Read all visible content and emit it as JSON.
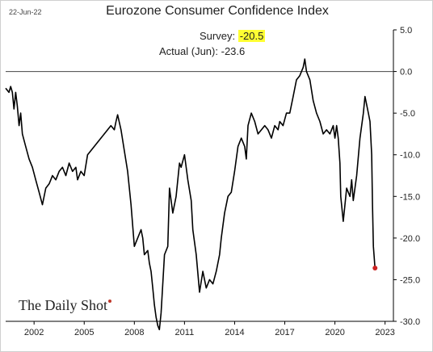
{
  "date_stamp": "22-Jun-22",
  "brand": "The Daily Shot",
  "annotations": {
    "survey_label": "Survey:",
    "survey_value": "-20.5",
    "actual_label": "Actual (Jun):",
    "actual_value": "-23.6",
    "highlight_color": "#ffff33"
  },
  "chart_data": {
    "type": "line",
    "title": "Eurozone Consumer Confidence Index",
    "xlabel": "",
    "ylabel": "",
    "xlim": [
      2000.3,
      2023.5
    ],
    "ylim": [
      -30,
      5
    ],
    "y_axis_position": "right",
    "grid": false,
    "zero_line": true,
    "x_ticks": [
      2002,
      2005,
      2008,
      2011,
      2014,
      2017,
      2020,
      2023
    ],
    "x_tick_labels": [
      "2002",
      "2005",
      "2008",
      "2011",
      "2014",
      "2017",
      "2020",
      "2023"
    ],
    "y_ticks": [
      5,
      0,
      -5,
      -10,
      -15,
      -20,
      -25,
      -30
    ],
    "y_tick_labels": [
      "5.0",
      "0.0",
      "-5.0",
      "-10.0",
      "-15.0",
      "-20.0",
      "-25.0",
      "-30.0"
    ],
    "series": [
      {
        "color": "#000000",
        "last_point_marker": "#cc2222",
        "x": [
          2000.3,
          2000.5,
          2000.6,
          2000.7,
          2000.8,
          2000.9,
          2001.0,
          2001.1,
          2001.2,
          2001.3,
          2001.5,
          2001.7,
          2001.9,
          2002.1,
          2002.3,
          2002.5,
          2002.7,
          2002.9,
          2003.0,
          2003.1,
          2003.3,
          2003.5,
          2003.7,
          2003.9,
          2004.1,
          2004.3,
          2004.5,
          2004.6,
          2004.8,
          2005.0,
          2005.2,
          2005.4,
          2005.6,
          2005.8,
          2006.0,
          2006.2,
          2006.4,
          2006.6,
          2006.8,
          2006.9,
          2007.0,
          2007.2,
          2007.4,
          2007.6,
          2007.8,
          2008.0,
          2008.2,
          2008.4,
          2008.5,
          2008.6,
          2008.8,
          2008.9,
          2009.0,
          2009.1,
          2009.2,
          2009.3,
          2009.4,
          2009.5,
          2009.6,
          2009.8,
          2010.0,
          2010.1,
          2010.3,
          2010.5,
          2010.7,
          2010.8,
          2011.0,
          2011.2,
          2011.4,
          2011.5,
          2011.7,
          2011.9,
          2012.1,
          2012.3,
          2012.5,
          2012.7,
          2012.9,
          2013.1,
          2013.2,
          2013.4,
          2013.6,
          2013.8,
          2014.0,
          2014.2,
          2014.4,
          2014.6,
          2014.7,
          2014.8,
          2015.0,
          2015.2,
          2015.4,
          2015.6,
          2015.8,
          2016.0,
          2016.2,
          2016.4,
          2016.6,
          2016.7,
          2016.9,
          2017.1,
          2017.3,
          2017.5,
          2017.7,
          2017.9,
          2018.1,
          2018.2,
          2018.3,
          2018.5,
          2018.7,
          2018.9,
          2019.1,
          2019.3,
          2019.5,
          2019.7,
          2019.9,
          2020.0,
          2020.1,
          2020.2,
          2020.3,
          2020.35,
          2020.5,
          2020.7,
          2020.9,
          2021.0,
          2021.1,
          2021.2,
          2021.3,
          2021.5,
          2021.7,
          2021.8,
          2021.9,
          2022.0,
          2022.1,
          2022.2,
          2022.25,
          2022.3,
          2022.4
        ],
        "y": [
          -2,
          -2.5,
          -1.8,
          -2.5,
          -4.5,
          -2.5,
          -4.2,
          -6.5,
          -5,
          -7.5,
          -9,
          -10.5,
          -11.5,
          -13,
          -14.5,
          -16,
          -14,
          -13.5,
          -13,
          -12.5,
          -13,
          -12,
          -11.5,
          -12.5,
          -11,
          -12,
          -11.5,
          -13,
          -12,
          -12.5,
          -10,
          -9.5,
          -9,
          -8.5,
          -8,
          -7.5,
          -7,
          -6.5,
          -7,
          -6,
          -5.2,
          -7,
          -9.5,
          -12,
          -16,
          -21,
          -20,
          -19,
          -20,
          -22,
          -21.5,
          -23,
          -24,
          -26,
          -28,
          -29.5,
          -30.5,
          -31,
          -29,
          -22,
          -21,
          -14,
          -17,
          -15,
          -11,
          -11.5,
          -10,
          -13,
          -15.5,
          -19,
          -22,
          -26.5,
          -24,
          -26,
          -25,
          -25.5,
          -24,
          -22,
          -20,
          -17,
          -15,
          -14.5,
          -12,
          -9,
          -8,
          -9,
          -10.5,
          -6.5,
          -5,
          -6,
          -7.5,
          -7,
          -6.5,
          -7,
          -8,
          -6.5,
          -7,
          -6,
          -6.5,
          -5,
          -5,
          -3,
          -1,
          -0.5,
          0.5,
          1.5,
          0,
          -1,
          -3.5,
          -5,
          -6,
          -7.5,
          -7,
          -7.5,
          -6.5,
          -8,
          -6.5,
          -8,
          -11,
          -15,
          -18,
          -14,
          -15,
          -13,
          -15.5,
          -14,
          -12.5,
          -8,
          -5,
          -3,
          -4,
          -5,
          -6,
          -10,
          -16,
          -21,
          -23.6
        ]
      }
    ]
  }
}
